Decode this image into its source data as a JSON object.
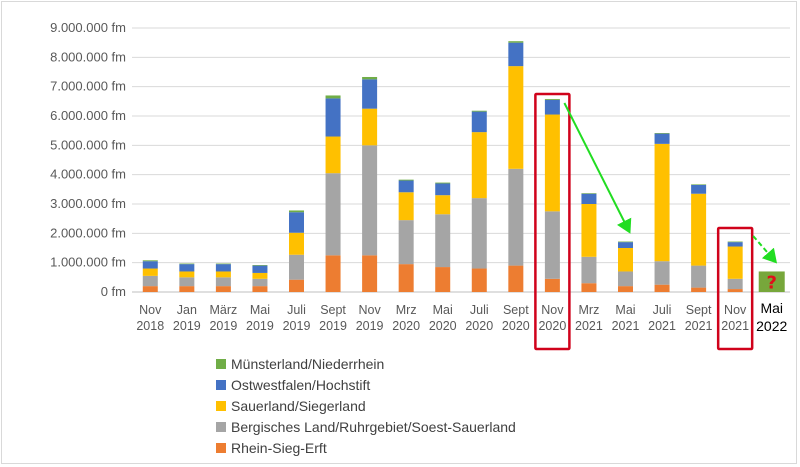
{
  "chart_data": {
    "type": "bar",
    "stacked": true,
    "categories": [
      [
        "Nov",
        "2018"
      ],
      [
        "Jan",
        "2019"
      ],
      [
        "März",
        "2019"
      ],
      [
        "Mai",
        "2019"
      ],
      [
        "Juli",
        "2019"
      ],
      [
        "Sept",
        "2019"
      ],
      [
        "Nov",
        "2019"
      ],
      [
        "Mrz",
        "2020"
      ],
      [
        "Mai",
        "2020"
      ],
      [
        "Juli",
        "2020"
      ],
      [
        "Sept",
        "2020"
      ],
      [
        "Nov",
        "2020"
      ],
      [
        "Mrz",
        "2021"
      ],
      [
        "Mai",
        "2021"
      ],
      [
        "Juli",
        "2021"
      ],
      [
        "Sept",
        "2021"
      ],
      [
        "Nov",
        "2021"
      ],
      [
        "Mai",
        "2022"
      ]
    ],
    "y_ticks": [
      "0 fm",
      "1.000.000 fm",
      "2.000.000 fm",
      "3.000.000 fm",
      "4.000.000 fm",
      "5.000.000 fm",
      "6.000.000 fm",
      "7.000.000 fm",
      "8.000.000 fm",
      "9.000.000 fm"
    ],
    "ylim": [
      0,
      9000000
    ],
    "grid": true,
    "legend_position": "bottom-left",
    "series": [
      {
        "name": "Rhein-Sieg-Erft",
        "color": "#ed7d31",
        "values": [
          200000,
          200000,
          200000,
          200000,
          420000,
          1250000,
          1250000,
          950000,
          850000,
          800000,
          900000,
          450000,
          300000,
          200000,
          250000,
          150000,
          100000,
          null
        ]
      },
      {
        "name": "Bergisches Land/Ruhrgebiet/Soest-Sauerland",
        "color": "#a5a5a5",
        "values": [
          350000,
          300000,
          300000,
          250000,
          850000,
          2800000,
          3750000,
          1500000,
          1800000,
          2400000,
          3300000,
          2300000,
          900000,
          500000,
          800000,
          750000,
          350000,
          null
        ]
      },
      {
        "name": "Sauerland/Siegerland",
        "color": "#ffc000",
        "values": [
          250000,
          200000,
          200000,
          200000,
          750000,
          1250000,
          1250000,
          950000,
          650000,
          2250000,
          3500000,
          3300000,
          1800000,
          800000,
          4000000,
          2450000,
          1100000,
          null
        ]
      },
      {
        "name": "Ostwestfalen/Hochstift",
        "color": "#4472c4",
        "values": [
          250000,
          250000,
          250000,
          250000,
          700000,
          1300000,
          1000000,
          400000,
          400000,
          700000,
          800000,
          500000,
          350000,
          200000,
          350000,
          300000,
          150000,
          null
        ]
      },
      {
        "name": "Münsterland/Niederrhein",
        "color": "#70ad47",
        "values": [
          30000,
          20000,
          20000,
          20000,
          60000,
          100000,
          80000,
          30000,
          30000,
          30000,
          50000,
          30000,
          20000,
          20000,
          20000,
          20000,
          20000,
          null
        ]
      }
    ],
    "forecast": {
      "category_index": 17,
      "value": 700000,
      "color": "#77a73b",
      "label": "?"
    },
    "highlights": [
      11,
      16
    ],
    "arrows": [
      [
        11,
        13
      ],
      [
        16,
        17
      ]
    ],
    "highlight_color": "#d0021b",
    "arrow_color": "#22dd22",
    "emphasized_category_color": "#000000"
  }
}
